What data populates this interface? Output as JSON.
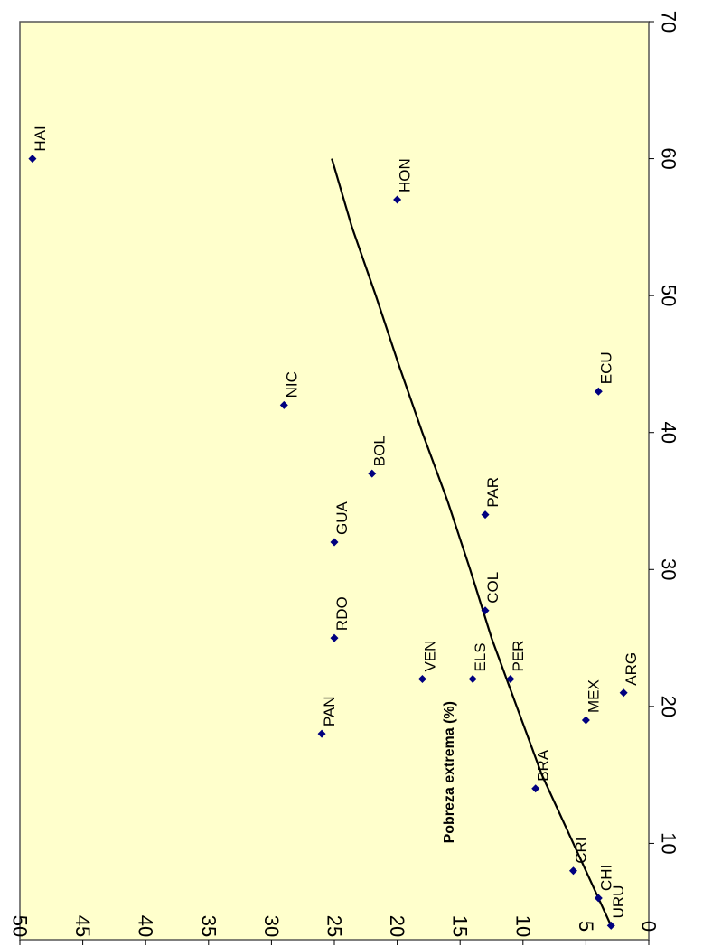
{
  "chart_data": {
    "type": "scatter",
    "title": "",
    "xlabel": "Pobreza extrema (%)",
    "ylabel": "",
    "xlim": [
      0,
      70
    ],
    "ylim": [
      0,
      50
    ],
    "x_ticks": [
      "0",
      "10",
      "20",
      "30",
      "40",
      "50",
      "60",
      "70"
    ],
    "y_ticks": [
      "0",
      "5",
      "10",
      "15",
      "20",
      "25",
      "30",
      "35",
      "40",
      "45",
      "50"
    ],
    "background_color": "#ffffcc",
    "point_color": "#00007f",
    "trend_color": "#000000",
    "points": [
      {
        "label": "HAI",
        "x": 60,
        "y": 49
      },
      {
        "label": "HON",
        "x": 57,
        "y": 20
      },
      {
        "label": "NIC",
        "x": 42,
        "y": 29
      },
      {
        "label": "ECU",
        "x": 43,
        "y": 4
      },
      {
        "label": "BOL",
        "x": 37,
        "y": 22
      },
      {
        "label": "PAR",
        "x": 34,
        "y": 13
      },
      {
        "label": "GUA",
        "x": 32,
        "y": 25
      },
      {
        "label": "COL",
        "x": 27,
        "y": 13
      },
      {
        "label": "RDO",
        "x": 25,
        "y": 25
      },
      {
        "label": "VEN",
        "x": 22,
        "y": 18
      },
      {
        "label": "ELS",
        "x": 22,
        "y": 14
      },
      {
        "label": "PER",
        "x": 22,
        "y": 11
      },
      {
        "label": "ARG",
        "x": 21,
        "y": 2
      },
      {
        "label": "MEX",
        "x": 19,
        "y": 5
      },
      {
        "label": "PAN",
        "x": 18,
        "y": 26
      },
      {
        "label": "BRA",
        "x": 14,
        "y": 9
      },
      {
        "label": "CRI",
        "x": 8,
        "y": 6
      },
      {
        "label": "CHI",
        "x": 6,
        "y": 4
      },
      {
        "label": "URU",
        "x": 4,
        "y": 3
      }
    ],
    "trendline": [
      {
        "x": 4,
        "y": 3.0
      },
      {
        "x": 10,
        "y": 6.0
      },
      {
        "x": 15,
        "y": 8.5
      },
      {
        "x": 20,
        "y": 10.5
      },
      {
        "x": 25,
        "y": 12.5
      },
      {
        "x": 30,
        "y": 14.2
      },
      {
        "x": 35,
        "y": 16.0
      },
      {
        "x": 40,
        "y": 18.0
      },
      {
        "x": 45,
        "y": 19.9
      },
      {
        "x": 50,
        "y": 21.7
      },
      {
        "x": 55,
        "y": 23.6
      },
      {
        "x": 60,
        "y": 25.2
      }
    ]
  }
}
